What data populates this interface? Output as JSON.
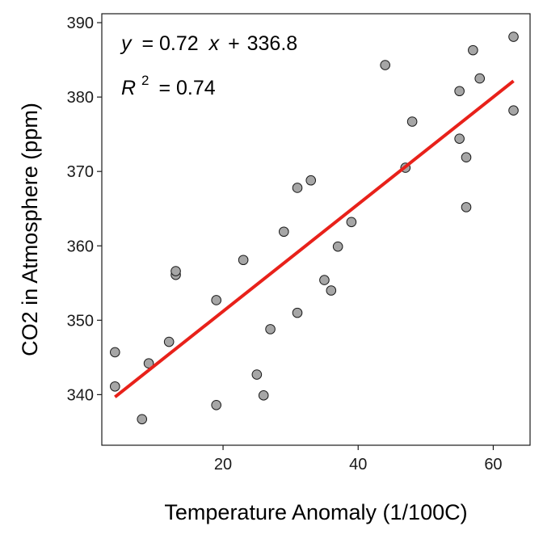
{
  "chart_data": {
    "type": "scatter",
    "title": "",
    "xlabel": "Temperature Anomaly (1/100C)",
    "ylabel": "CO2 in Atmosphere (ppm)",
    "xlim": [
      2.05,
      65.45
    ],
    "ylim": [
      333.2,
      391.2
    ],
    "xticks": [
      20,
      40,
      60
    ],
    "yticks": [
      340,
      350,
      360,
      370,
      380,
      390
    ],
    "grid": false,
    "points": [
      {
        "x": 4,
        "y": 345.7
      },
      {
        "x": 4,
        "y": 341.1
      },
      {
        "x": 8,
        "y": 336.7
      },
      {
        "x": 9,
        "y": 344.2
      },
      {
        "x": 12,
        "y": 347.1
      },
      {
        "x": 13,
        "y": 356.1
      },
      {
        "x": 13,
        "y": 356.6
      },
      {
        "x": 19,
        "y": 352.7
      },
      {
        "x": 19,
        "y": 338.6
      },
      {
        "x": 23,
        "y": 358.1
      },
      {
        "x": 25,
        "y": 342.7
      },
      {
        "x": 26,
        "y": 339.9
      },
      {
        "x": 27,
        "y": 348.8
      },
      {
        "x": 29,
        "y": 361.9
      },
      {
        "x": 31,
        "y": 367.8
      },
      {
        "x": 31,
        "y": 351.0
      },
      {
        "x": 33,
        "y": 368.8
      },
      {
        "x": 35,
        "y": 355.4
      },
      {
        "x": 36,
        "y": 354.0
      },
      {
        "x": 37,
        "y": 359.9
      },
      {
        "x": 39,
        "y": 363.2
      },
      {
        "x": 44,
        "y": 384.3
      },
      {
        "x": 47,
        "y": 370.5
      },
      {
        "x": 48,
        "y": 376.7
      },
      {
        "x": 55,
        "y": 380.8
      },
      {
        "x": 55,
        "y": 374.4
      },
      {
        "x": 56,
        "y": 371.9
      },
      {
        "x": 56,
        "y": 365.2
      },
      {
        "x": 57,
        "y": 386.3
      },
      {
        "x": 58,
        "y": 382.5
      },
      {
        "x": 63,
        "y": 388.1
      },
      {
        "x": 63,
        "y": 378.2
      }
    ],
    "fit": {
      "slope": 0.72,
      "intercept": 336.8,
      "x_range": [
        4,
        63
      ]
    },
    "annotations": {
      "equation": {
        "y": "y",
        "coef": "= 0.72",
        "x": "x",
        "op": "+",
        "intercept": "336.8"
      },
      "r2": {
        "r": "R",
        "sup": "2",
        "value": "= 0.74"
      }
    },
    "colors": {
      "point_fill": "#a6a6a6",
      "point_stroke": "#1a1a1a",
      "fit_line": "#e8211a",
      "axis": "#1a1a1a"
    }
  }
}
